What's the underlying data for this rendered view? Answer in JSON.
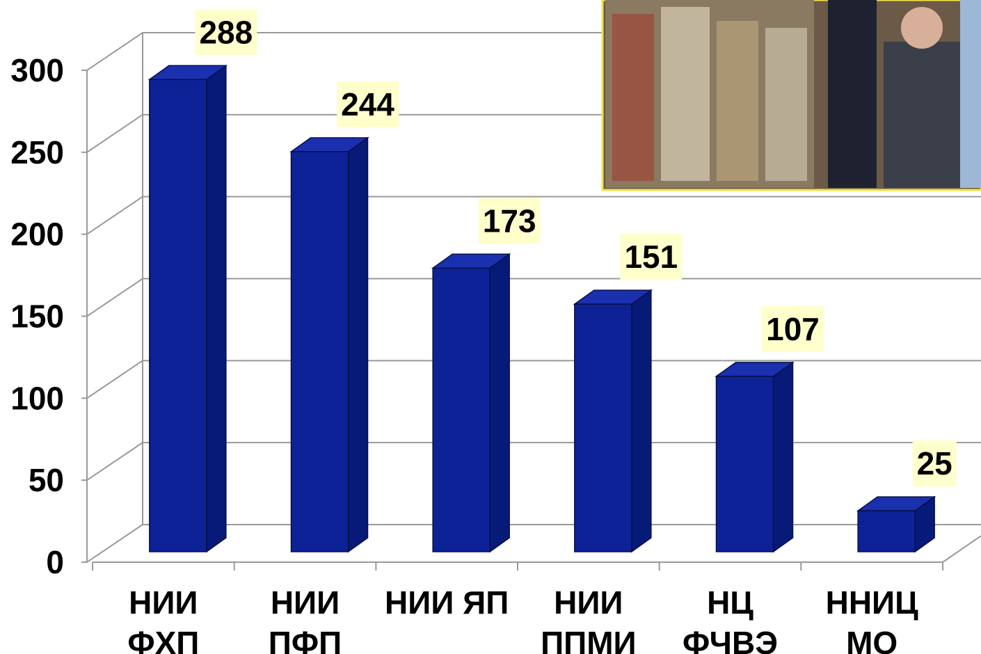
{
  "chart_data": {
    "type": "bar3d",
    "categories": [
      [
        "НИИ",
        "ФХП"
      ],
      [
        "НИИ",
        "ПФП"
      ],
      [
        "НИИ ЯП"
      ],
      [
        "НИИ",
        "ППМИ"
      ],
      [
        "НЦ",
        "ФЧВЭ"
      ],
      [
        "ННИЦ",
        "МО"
      ]
    ],
    "values": [
      288,
      244,
      173,
      151,
      107,
      25
    ],
    "color": "#0d2296",
    "ylim": [
      0,
      300
    ],
    "yticks": [
      0,
      50,
      100,
      150,
      200,
      250,
      300
    ],
    "grid": true
  }
}
